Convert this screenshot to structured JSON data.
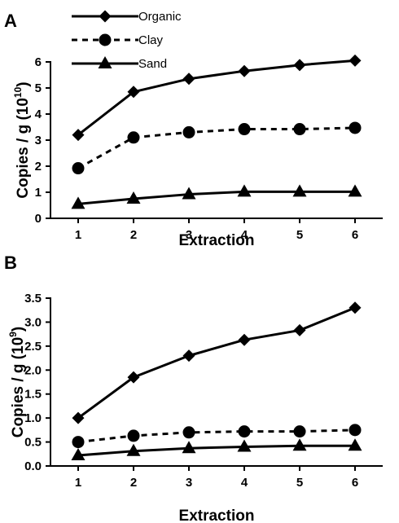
{
  "legend": {
    "entries": [
      {
        "name": "Organic",
        "marker": "diamond",
        "dash": "solid"
      },
      {
        "name": "Clay",
        "marker": "circle",
        "dash": "dashed"
      },
      {
        "name": "Sand",
        "marker": "triangle",
        "dash": "solid"
      }
    ]
  },
  "colors": {
    "line": "#000000",
    "background": "#ffffff"
  },
  "chart_data": [
    {
      "panel": "A",
      "type": "line",
      "xlabel": "Extraction",
      "ylabel": "Copies / g (10",
      "ylabel_exponent": "10",
      "ylabel_close": ")",
      "x": [
        1,
        2,
        3,
        4,
        5,
        6
      ],
      "xlim": [
        0.5,
        6.5
      ],
      "ylim": [
        0,
        6
      ],
      "yticks": [
        0,
        1,
        2,
        3,
        4,
        5,
        6
      ],
      "ytick_labels": [
        "0",
        "1",
        "2",
        "3",
        "4",
        "5",
        "6"
      ],
      "grid": false,
      "legend_position": "top-left",
      "series": [
        {
          "name": "Organic",
          "values": [
            3.2,
            4.85,
            5.35,
            5.65,
            5.88,
            6.05
          ]
        },
        {
          "name": "Clay",
          "values": [
            1.92,
            3.1,
            3.3,
            3.42,
            3.42,
            3.47
          ]
        },
        {
          "name": "Sand",
          "values": [
            0.55,
            0.75,
            0.92,
            1.02,
            1.02,
            1.02
          ]
        }
      ]
    },
    {
      "panel": "B",
      "type": "line",
      "xlabel": "Extraction",
      "ylabel": "Copies / g (10",
      "ylabel_exponent": "9",
      "ylabel_close": ")",
      "x": [
        1,
        2,
        3,
        4,
        5,
        6
      ],
      "xlim": [
        0.5,
        6.5
      ],
      "ylim": [
        0,
        3.5
      ],
      "yticks": [
        0,
        0.5,
        1,
        1.5,
        2,
        2.5,
        3,
        3.5
      ],
      "ytick_labels": [
        "0.0",
        "0.5",
        "1.0",
        "1.5",
        "2.0",
        "2.5",
        "3.0",
        "3.5"
      ],
      "grid": false,
      "series": [
        {
          "name": "Organic",
          "values": [
            1.0,
            1.85,
            2.3,
            2.63,
            2.83,
            3.3
          ]
        },
        {
          "name": "Clay",
          "values": [
            0.5,
            0.63,
            0.7,
            0.72,
            0.72,
            0.75
          ]
        },
        {
          "name": "Sand",
          "values": [
            0.22,
            0.31,
            0.37,
            0.4,
            0.42,
            0.42
          ]
        }
      ]
    }
  ]
}
